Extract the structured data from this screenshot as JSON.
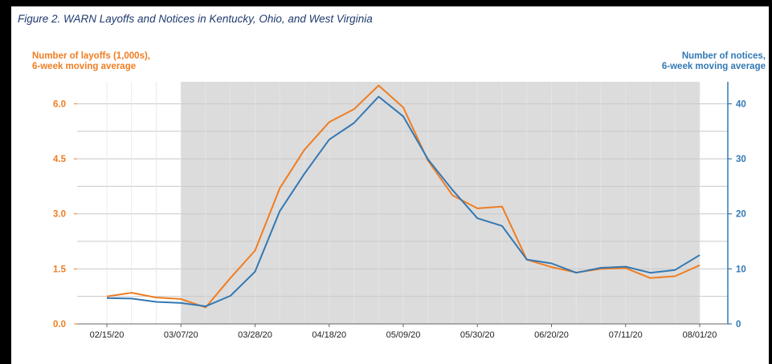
{
  "figure": {
    "title": "Figure 2. WARN Layoffs and Notices in Kentucky, Ohio, and West Virginia",
    "left_axis_label": [
      "Number of layoffs (1,000s),",
      "6-week moving average"
    ],
    "right_axis_label": [
      "Number of notices,",
      "6-week moving average"
    ]
  },
  "chart_data": {
    "type": "line",
    "title": "Figure 2. WARN Layoffs and Notices in Kentucky, Ohio, and West Virginia",
    "x": [
      "02/15/20",
      "02/22/20",
      "02/29/20",
      "03/07/20",
      "03/14/20",
      "03/21/20",
      "03/28/20",
      "04/04/20",
      "04/11/20",
      "04/18/20",
      "04/25/20",
      "05/02/20",
      "05/09/20",
      "05/16/20",
      "05/23/20",
      "05/30/20",
      "06/06/20",
      "06/13/20",
      "06/20/20",
      "06/27/20",
      "07/04/20",
      "07/11/20",
      "07/18/20",
      "07/25/20",
      "08/01/20"
    ],
    "x_ticks": [
      "02/15/20",
      "03/07/20",
      "03/28/20",
      "04/18/20",
      "05/09/20",
      "05/30/20",
      "06/20/20",
      "07/11/20",
      "08/01/20"
    ],
    "shaded_range": [
      "03/07/20",
      "08/01/20"
    ],
    "y_left": {
      "label": "Number of layoffs (1,000s), 6-week moving average",
      "ylim": [
        0,
        6.6
      ],
      "ticks": [
        "0.0",
        "1.5",
        "3.0",
        "4.5",
        "6.0"
      ],
      "color": "#ef7d22"
    },
    "y_right": {
      "label": "Number of notices, 6-week moving average",
      "ylim": [
        0,
        44
      ],
      "ticks": [
        "0",
        "10",
        "20",
        "30",
        "40"
      ],
      "color": "#3278b4"
    },
    "series": [
      {
        "axis": "left",
        "color": "#ef7d22",
        "values": [
          0.75,
          0.85,
          0.72,
          0.68,
          0.45,
          1.25,
          2.0,
          3.7,
          4.75,
          5.5,
          5.85,
          6.5,
          5.9,
          4.45,
          3.5,
          3.15,
          3.2,
          1.75,
          1.55,
          1.4,
          1.5,
          1.52,
          1.25,
          1.3,
          1.6
        ]
      },
      {
        "axis": "right",
        "color": "#3278b4",
        "values": [
          4.7,
          4.6,
          4.0,
          3.8,
          3.2,
          5.1,
          9.5,
          20.5,
          27.3,
          33.5,
          36.5,
          41.3,
          37.7,
          29.9,
          24.3,
          19.2,
          17.8,
          11.7,
          11.0,
          9.3,
          10.2,
          10.4,
          9.3,
          9.8,
          12.5
        ]
      }
    ],
    "grid": true,
    "legend": "none"
  }
}
